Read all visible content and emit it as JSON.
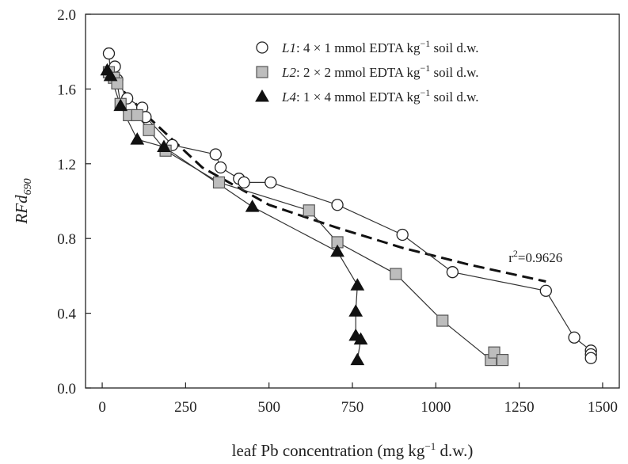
{
  "chart_data": {
    "type": "scatter",
    "xlabel": {
      "main": "leaf Pb concentration (mg kg",
      "sup": "−1",
      "tail": " d.w.)"
    },
    "ylabel": {
      "main": "RFd",
      "sub": "690"
    },
    "xlim": [
      -50,
      1550
    ],
    "ylim": [
      0,
      2.0
    ],
    "xticks": [
      "0",
      "250",
      "500",
      "750",
      "1000",
      "1250",
      "1500"
    ],
    "xtick_values": [
      0,
      250,
      500,
      750,
      1000,
      1250,
      1500
    ],
    "yticks": [
      "0.0",
      "0.4",
      "0.8",
      "1.2",
      "1.6",
      "2.0"
    ],
    "ytick_values": [
      0,
      0.4,
      0.8,
      1.2,
      1.6,
      2.0
    ],
    "grid": false,
    "legend_position": "top-right",
    "series": [
      {
        "name": "L1: 4 × 1 mmol EDTA kg−1 soil d.w.",
        "legend": {
          "italic": "L1",
          "main": ": 4 × 1 mmol EDTA kg",
          "sup": "−1",
          "tail": " soil d.w."
        },
        "marker": "circle",
        "fill": "#ffffff",
        "stroke": "#222222",
        "points": [
          [
            20,
            1.79
          ],
          [
            25,
            1.68
          ],
          [
            30,
            1.7
          ],
          [
            38,
            1.72
          ],
          [
            45,
            1.65
          ],
          [
            75,
            1.55
          ],
          [
            120,
            1.5
          ],
          [
            130,
            1.45
          ],
          [
            210,
            1.3
          ],
          [
            340,
            1.25
          ],
          [
            355,
            1.18
          ],
          [
            410,
            1.12
          ],
          [
            425,
            1.1
          ],
          [
            505,
            1.1
          ],
          [
            705,
            0.98
          ],
          [
            900,
            0.82
          ],
          [
            1050,
            0.62
          ],
          [
            1330,
            0.52
          ],
          [
            1415,
            0.27
          ],
          [
            1465,
            0.2
          ],
          [
            1465,
            0.18
          ],
          [
            1465,
            0.16
          ]
        ]
      },
      {
        "name": "L2: 2 × 2 mmol EDTA kg−1 soil d.w.",
        "legend": {
          "italic": "L2",
          "main": ": 2 × 2 mmol EDTA kg",
          "sup": "−1",
          "tail": " soil d.w."
        },
        "marker": "square",
        "fill": "#bdbdbd",
        "stroke": "#555555",
        "points": [
          [
            20,
            1.69
          ],
          [
            35,
            1.66
          ],
          [
            45,
            1.63
          ],
          [
            55,
            1.52
          ],
          [
            80,
            1.46
          ],
          [
            105,
            1.46
          ],
          [
            140,
            1.38
          ],
          [
            190,
            1.27
          ],
          [
            350,
            1.1
          ],
          [
            620,
            0.95
          ],
          [
            705,
            0.78
          ],
          [
            880,
            0.61
          ],
          [
            1020,
            0.36
          ],
          [
            1165,
            0.15
          ],
          [
            1175,
            0.19
          ],
          [
            1200,
            0.15
          ]
        ]
      },
      {
        "name": "L4: 1 × 4 mmol EDTA kg−1 soil d.w.",
        "legend": {
          "italic": "L4",
          "main": ": 1 × 4 mmol EDTA kg",
          "sup": "−1",
          "tail": " soil d.w."
        },
        "marker": "triangle",
        "fill": "#111111",
        "stroke": "#111111",
        "points": [
          [
            15,
            1.7
          ],
          [
            25,
            1.67
          ],
          [
            55,
            1.51
          ],
          [
            105,
            1.33
          ],
          [
            185,
            1.29
          ],
          [
            450,
            0.97
          ],
          [
            705,
            0.73
          ],
          [
            765,
            0.55
          ],
          [
            760,
            0.41
          ],
          [
            760,
            0.28
          ],
          [
            775,
            0.26
          ],
          [
            765,
            0.15
          ]
        ]
      }
    ],
    "fit_line": {
      "style": "dashed",
      "points": [
        [
          30,
          1.65
        ],
        [
          150,
          1.43
        ],
        [
          300,
          1.18
        ],
        [
          500,
          0.98
        ],
        [
          700,
          0.86
        ],
        [
          900,
          0.75
        ],
        [
          1100,
          0.66
        ],
        [
          1330,
          0.57
        ]
      ]
    },
    "annotation": {
      "text": "r",
      "sup": "2",
      "tail": "=0.9626",
      "x": 1230,
      "y": 0.7
    }
  }
}
